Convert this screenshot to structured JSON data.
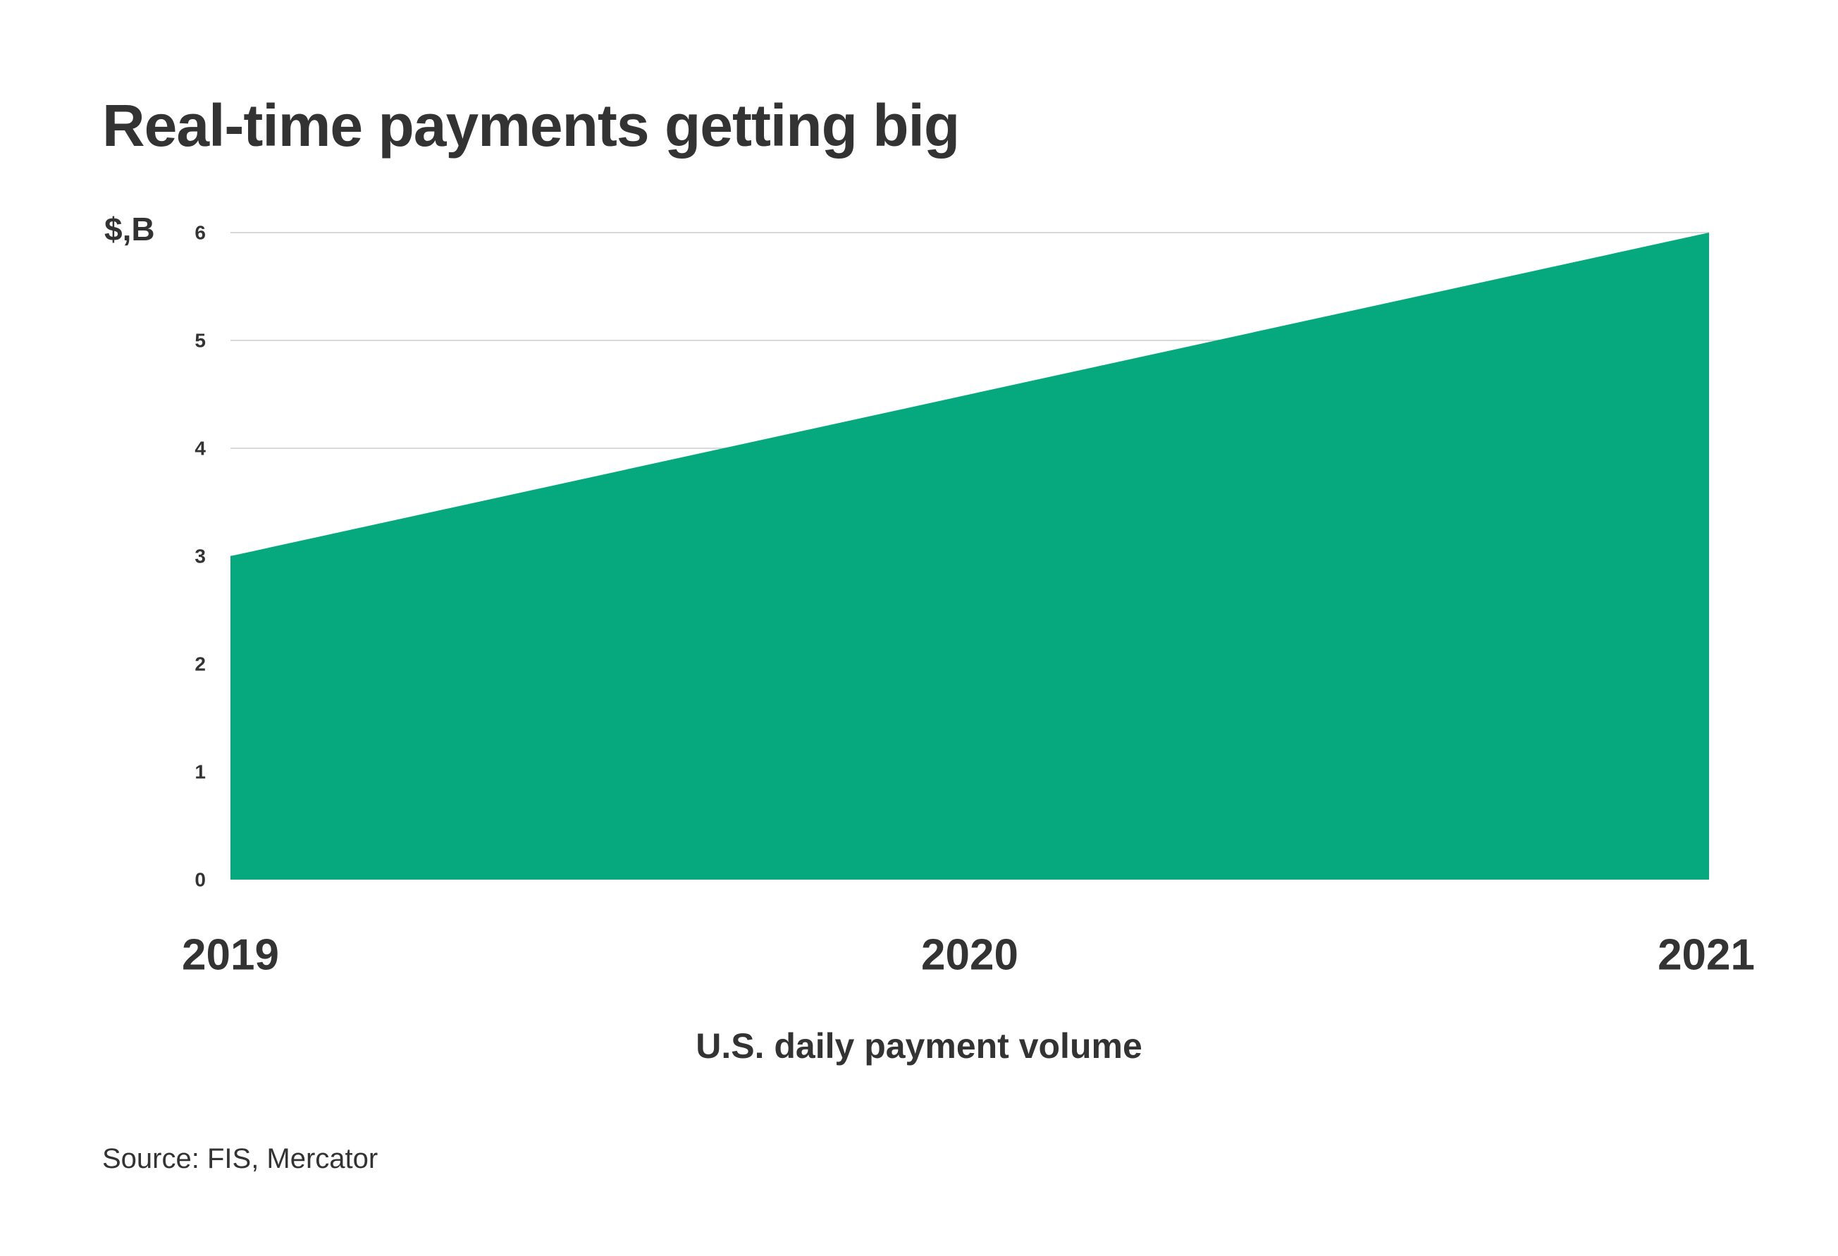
{
  "chart_data": {
    "type": "area",
    "title": "Real-time payments getting big",
    "ylabel": "$,B",
    "xlabel": "U.S. daily payment volume",
    "categories": [
      "2019",
      "2020",
      "2021"
    ],
    "series": [
      {
        "values": [
          3,
          4.5,
          6
        ]
      }
    ],
    "ylim": [
      0,
      6
    ],
    "yticks": [
      0,
      1,
      2,
      3,
      4,
      5,
      6
    ],
    "grid": true,
    "legend": "none",
    "colors": {
      "area": "#06a97e",
      "grid": "#d9d9d9",
      "text": "#333333"
    }
  },
  "source": "Source: FIS, Mercator"
}
